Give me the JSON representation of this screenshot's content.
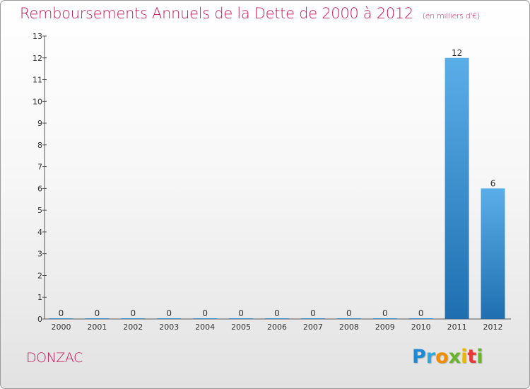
{
  "header": {
    "title": "Remboursements Annuels de la Dette de 2000 à 2012",
    "unit": "(en milliers d'€)"
  },
  "footer": {
    "commune": "DONZAC",
    "logo_letters": [
      "P",
      "r",
      "o",
      "x",
      "i",
      "t",
      "i"
    ]
  },
  "colors": {
    "title": "#c2185b",
    "bar_top": "#5aaee8",
    "bar_bottom": "#1f6fb0"
  },
  "chart_data": {
    "type": "bar",
    "categories": [
      "2000",
      "2001",
      "2002",
      "2003",
      "2004",
      "2005",
      "2006",
      "2007",
      "2008",
      "2009",
      "2010",
      "2011",
      "2012"
    ],
    "values": [
      0,
      0,
      0,
      0,
      0,
      0,
      0,
      0,
      0,
      0,
      0,
      12,
      6
    ],
    "value_labels": [
      "0",
      "0",
      "0",
      "0",
      "0",
      "0",
      "0",
      "0",
      "0",
      "0",
      "0",
      "12",
      "6"
    ],
    "yticks": [
      "0",
      "1",
      "2",
      "3",
      "4",
      "5",
      "6",
      "7",
      "8",
      "9",
      "10",
      "11",
      "12",
      "13"
    ],
    "ylim": [
      0,
      13
    ],
    "grid": false,
    "legend": "none"
  }
}
